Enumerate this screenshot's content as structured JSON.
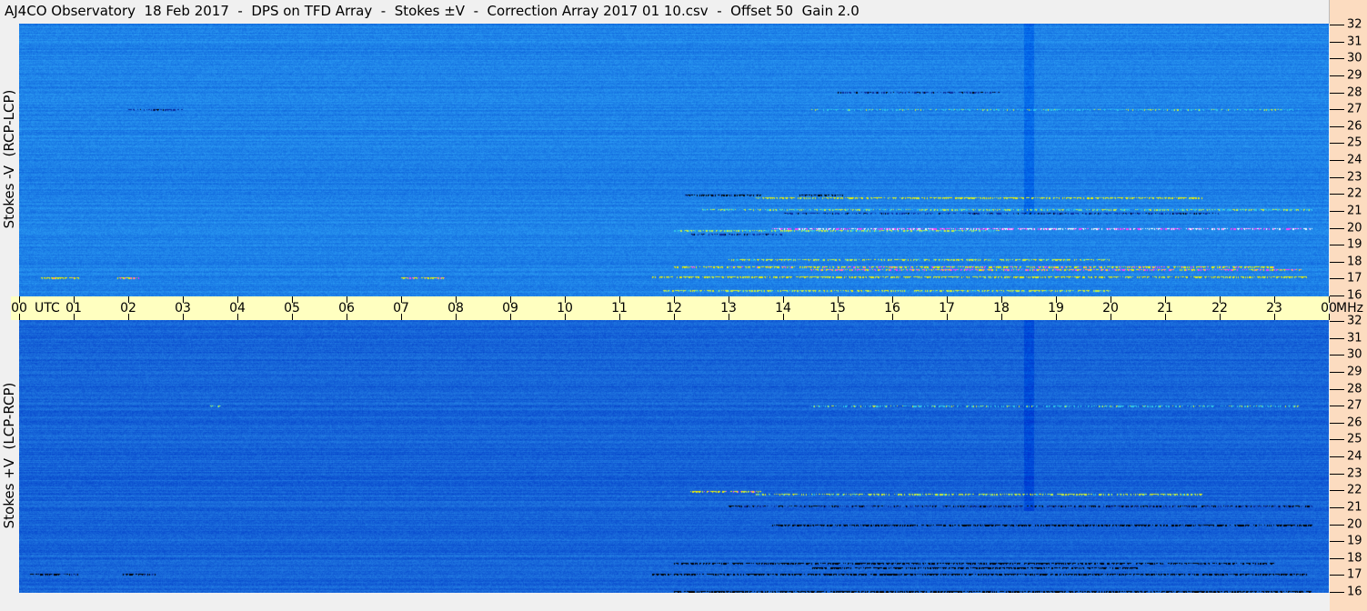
{
  "title": "AJ4CO Observatory  18 Feb 2017  -  DPS on TFD Array  -  Stokes ±V  -  Correction Array 2017 01 10.csv  -  Offset 50  Gain 2.0",
  "chart_data": [
    {
      "type": "heatmap",
      "title": "",
      "ylabel": "Stokes -V  (RCP-LCP)",
      "xlabel": "UTC",
      "yunit": "MHz",
      "xlim": [
        0,
        24
      ],
      "ylim": [
        16,
        32
      ],
      "colors": {
        "base": "#1e82e8",
        "low": "#0a2a9a",
        "lowest": "#000000",
        "mid": "#30c8e8",
        "high": "#c8f040",
        "higher": "#f0f000",
        "peak": "#ff40ff",
        "max": "#ffffff"
      },
      "bands": [
        [
          0.4,
          1.1,
          17.1,
          3
        ],
        [
          1.8,
          2.2,
          17.1,
          3
        ],
        [
          7.0,
          7.8,
          17.1,
          3
        ],
        [
          11.6,
          23.6,
          17.2,
          2.5
        ],
        [
          12.0,
          23.0,
          17.75,
          3
        ],
        [
          14.5,
          23.5,
          17.6,
          3.5
        ],
        [
          13.0,
          20.0,
          18.2,
          2
        ],
        [
          11.8,
          20.0,
          16.4,
          2
        ],
        [
          13.8,
          23.7,
          20.0,
          4.5
        ],
        [
          12.0,
          18.0,
          19.9,
          1.5
        ],
        [
          12.2,
          13.6,
          22.0,
          -2
        ],
        [
          14.3,
          15.1,
          22.0,
          -2
        ],
        [
          13.5,
          21.7,
          21.8,
          2.5
        ],
        [
          12.5,
          23.7,
          21.1,
          1.5
        ],
        [
          14.0,
          22.0,
          20.9,
          -1
        ],
        [
          12.3,
          14.0,
          19.7,
          -1
        ],
        [
          14.5,
          23.5,
          27.0,
          1
        ],
        [
          15.0,
          18.0,
          28.0,
          -1
        ],
        [
          2.0,
          3.0,
          27.0,
          -1
        ]
      ],
      "dark_columns": [
        18.4,
        18.6
      ]
    },
    {
      "type": "heatmap",
      "title": "",
      "ylabel": "Stokes +V  (LCP-RCP)",
      "xlabel": "UTC",
      "yunit": "MHz",
      "xlim": [
        0,
        24
      ],
      "ylim": [
        16,
        32
      ],
      "colors": {
        "base": "#1664d8",
        "low": "#0a2a9a",
        "lowest": "#000000",
        "mid": "#30c8e8",
        "high": "#c8f040",
        "higher": "#f0f000",
        "peak": "#ff40ff",
        "max": "#ffffff"
      },
      "bands": [
        [
          0.2,
          1.1,
          17.1,
          -2
        ],
        [
          1.9,
          2.5,
          17.1,
          -2
        ],
        [
          11.6,
          23.6,
          17.1,
          -2.5
        ],
        [
          12.0,
          23.0,
          17.75,
          -2.5
        ],
        [
          14.5,
          20.5,
          17.5,
          -3
        ],
        [
          13.8,
          17.3,
          20.0,
          -3
        ],
        [
          17.3,
          23.7,
          20.0,
          -2.5
        ],
        [
          12.3,
          13.6,
          22.0,
          3
        ],
        [
          13.5,
          21.7,
          21.8,
          2
        ],
        [
          13.0,
          23.7,
          21.1,
          -1.5
        ],
        [
          12.0,
          23.7,
          16.1,
          -2.5
        ],
        [
          14.5,
          23.5,
          27.0,
          1
        ],
        [
          3.5,
          3.7,
          27.0,
          1.5
        ]
      ],
      "dark_columns": [
        18.4,
        18.6
      ]
    }
  ],
  "x_ticks": [
    "00",
    "01",
    "02",
    "03",
    "04",
    "05",
    "06",
    "07",
    "08",
    "09",
    "10",
    "11",
    "12",
    "13",
    "14",
    "15",
    "16",
    "17",
    "18",
    "19",
    "20",
    "21",
    "22",
    "23",
    "00"
  ],
  "y_ticks": [
    "32",
    "31",
    "30",
    "29",
    "28",
    "27",
    "26",
    "25",
    "24",
    "23",
    "22",
    "21",
    "20",
    "19",
    "18",
    "17",
    "16"
  ],
  "utc_label": "UTC",
  "mhz_label": "MHz"
}
